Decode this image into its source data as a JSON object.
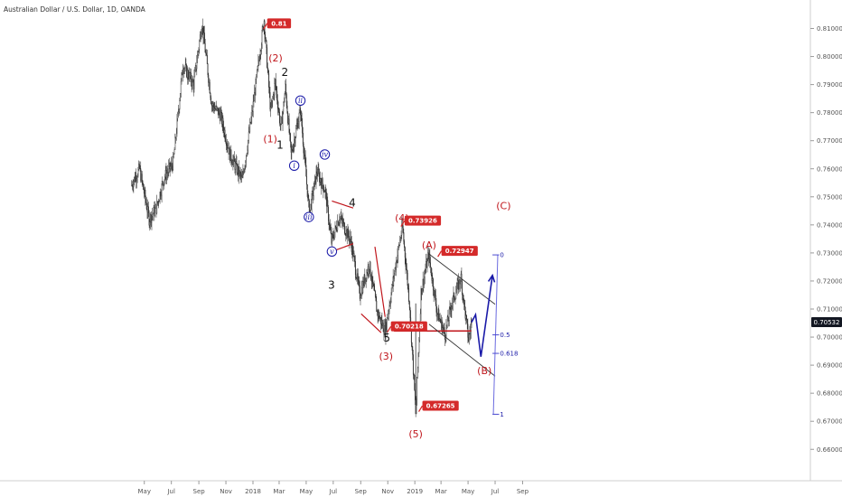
{
  "chart_title": "Australian Dollar / U.S. Dollar, 1D, OANDA",
  "colors": {
    "candle": "#2d2d2d",
    "wave_red": "#c0161c",
    "wave_blue": "#1a1aa8",
    "callout": "#d42a2a",
    "channel": "#333333",
    "price_tag": "#131722"
  },
  "chart_data": {
    "type": "line",
    "title": "Australian Dollar / U.S. Dollar, 1D, OANDA",
    "xlabel": "",
    "ylabel": "",
    "ylim": [
      0.656,
      0.815
    ],
    "grid": false,
    "x_ticks": [
      "May",
      "Jul",
      "Sep",
      "Nov",
      "2018",
      "Mar",
      "May",
      "Jul",
      "Sep",
      "Nov",
      "2019",
      "Mar",
      "May",
      "Jul",
      "Sep"
    ],
    "y_ticks": [
      "0.81000",
      "0.80000",
      "0.79000",
      "0.78000",
      "0.77000",
      "0.76000",
      "0.75000",
      "0.74000",
      "0.73000",
      "0.72000",
      "0.71000",
      "0.70000",
      "0.69000",
      "0.68000",
      "0.67000",
      "0.66000"
    ],
    "last_price": "0.70532",
    "price_series": [
      [
        "2017-04-01",
        0.754
      ],
      [
        "2017-04-20",
        0.76
      ],
      [
        "2017-05-12",
        0.742
      ],
      [
        "2017-05-28",
        0.746
      ],
      [
        "2017-06-15",
        0.757
      ],
      [
        "2017-07-05",
        0.762
      ],
      [
        "2017-07-27",
        0.797
      ],
      [
        "2017-08-20",
        0.79
      ],
      [
        "2017-09-08",
        0.812
      ],
      [
        "2017-09-30",
        0.783
      ],
      [
        "2017-10-20",
        0.779
      ],
      [
        "2017-11-10",
        0.765
      ],
      [
        "2017-12-08",
        0.756
      ],
      [
        "2017-12-31",
        0.781
      ],
      [
        "2018-01-26",
        0.813
      ],
      [
        "2018-02-10",
        0.78
      ],
      [
        "2018-02-20",
        0.791
      ],
      [
        "2018-03-05",
        0.774
      ],
      [
        "2018-03-15",
        0.789
      ],
      [
        "2018-03-28",
        0.765
      ],
      [
        "2018-04-18",
        0.781
      ],
      [
        "2018-05-08",
        0.744
      ],
      [
        "2018-05-25",
        0.759
      ],
      [
        "2018-06-13",
        0.752
      ],
      [
        "2018-06-27",
        0.734
      ],
      [
        "2018-07-15",
        0.743
      ],
      [
        "2018-08-10",
        0.734
      ],
      [
        "2018-08-30",
        0.715
      ],
      [
        "2018-09-20",
        0.726
      ],
      [
        "2018-10-08",
        0.709
      ],
      [
        "2018-10-26",
        0.702
      ],
      [
        "2018-11-20",
        0.727
      ],
      [
        "2018-12-04",
        0.7393
      ],
      [
        "2018-12-20",
        0.712
      ],
      [
        "2019-01-03",
        0.6727
      ],
      [
        "2019-01-15",
        0.716
      ],
      [
        "2019-02-01",
        0.7295
      ],
      [
        "2019-02-20",
        0.709
      ],
      [
        "2019-03-10",
        0.701
      ],
      [
        "2019-03-25",
        0.712
      ],
      [
        "2019-04-15",
        0.721
      ],
      [
        "2019-05-02",
        0.699
      ],
      [
        "2019-05-09",
        0.7053
      ]
    ],
    "projection": [
      [
        "2019-05-09",
        0.7053
      ],
      [
        "2019-05-18",
        0.708
      ],
      [
        "2019-05-30",
        0.693
      ],
      [
        "2019-06-25",
        0.722
      ]
    ],
    "wave_labels": [
      {
        "label": "(1)",
        "date": "2018-02-09",
        "price": 0.7707,
        "color": "red"
      },
      {
        "label": "(2)",
        "date": "2018-02-21",
        "price": 0.7996,
        "color": "red"
      },
      {
        "label": "1",
        "date": "2018-03-03",
        "price": 0.7685,
        "color": "black"
      },
      {
        "label": "2",
        "date": "2018-03-14",
        "price": 0.7944,
        "color": "black"
      },
      {
        "label": "i",
        "date": "2018-04-04",
        "price": 0.7611,
        "color": "blue"
      },
      {
        "label": "ii",
        "date": "2018-04-18",
        "price": 0.7843,
        "color": "blue"
      },
      {
        "label": "iii",
        "date": "2018-05-07",
        "price": 0.7428,
        "color": "blue"
      },
      {
        "label": "iv",
        "date": "2018-06-12",
        "price": 0.7651,
        "color": "blue"
      },
      {
        "label": "v",
        "date": "2018-06-28",
        "price": 0.7305,
        "color": "blue"
      },
      {
        "label": "3",
        "date": "2018-06-27",
        "price": 0.7186,
        "color": "black"
      },
      {
        "label": "4",
        "date": "2018-08-13",
        "price": 0.7479,
        "color": "black"
      },
      {
        "label": "5",
        "date": "2018-10-30",
        "price": 0.6997,
        "color": "black"
      },
      {
        "label": "(3)",
        "date": "2018-10-28",
        "price": 0.6932,
        "color": "red"
      },
      {
        "label": "(4)",
        "date": "2018-12-03",
        "price": 0.7426,
        "color": "red"
      },
      {
        "label": "(5)",
        "date": "2019-01-03",
        "price": 0.6655,
        "color": "red"
      },
      {
        "label": "(A)",
        "date": "2019-02-02",
        "price": 0.7328,
        "color": "red"
      },
      {
        "label": "(B)",
        "date": "2019-06-07",
        "price": 0.6881,
        "color": "red"
      },
      {
        "label": "(C)",
        "date": "2019-07-20",
        "price": 0.7468,
        "color": "red"
      }
    ],
    "price_callouts": [
      {
        "label": "0.81",
        "date": "2018-02-02",
        "price": 0.8136
      },
      {
        "label": "0.73926",
        "date": "2018-12-09",
        "price": 0.7433
      },
      {
        "label": "0.72947",
        "date": "2019-03-02",
        "price": 0.7325
      },
      {
        "label": "0.70218",
        "date": "2018-11-08",
        "price": 0.7056
      },
      {
        "label": "0.67265",
        "date": "2019-01-18",
        "price": 0.6773
      }
    ],
    "fib_levels": [
      {
        "label": "0",
        "price": 0.7293
      },
      {
        "label": "0.5",
        "price": 0.7008
      },
      {
        "label": "0.618",
        "price": 0.6942
      },
      {
        "label": "1",
        "price": 0.6725
      }
    ],
    "support_line": {
      "start": "2018-11-15",
      "end": "2019-05-08",
      "price": 0.7022
    },
    "channel": {
      "upper": [
        [
          "2019-02-02",
          0.7296
        ],
        [
          "2019-07-01",
          0.7117
        ]
      ],
      "lower": [
        [
          "2019-02-02",
          0.7046
        ],
        [
          "2019-07-01",
          0.6861
        ]
      ]
    },
    "triangle_lines": [
      [
        [
          "2018-06-28",
          0.7485
        ],
        [
          "2018-08-15",
          0.746
        ]
      ],
      [
        [
          "2018-06-28",
          0.7305
        ],
        [
          "2018-08-15",
          0.7333
        ]
      ],
      [
        [
          "2018-09-02",
          0.7083
        ],
        [
          "2018-10-17",
          0.7016
        ]
      ],
      [
        [
          "2018-10-03",
          0.7322
        ],
        [
          "2018-10-26",
          0.7072
        ]
      ]
    ]
  }
}
